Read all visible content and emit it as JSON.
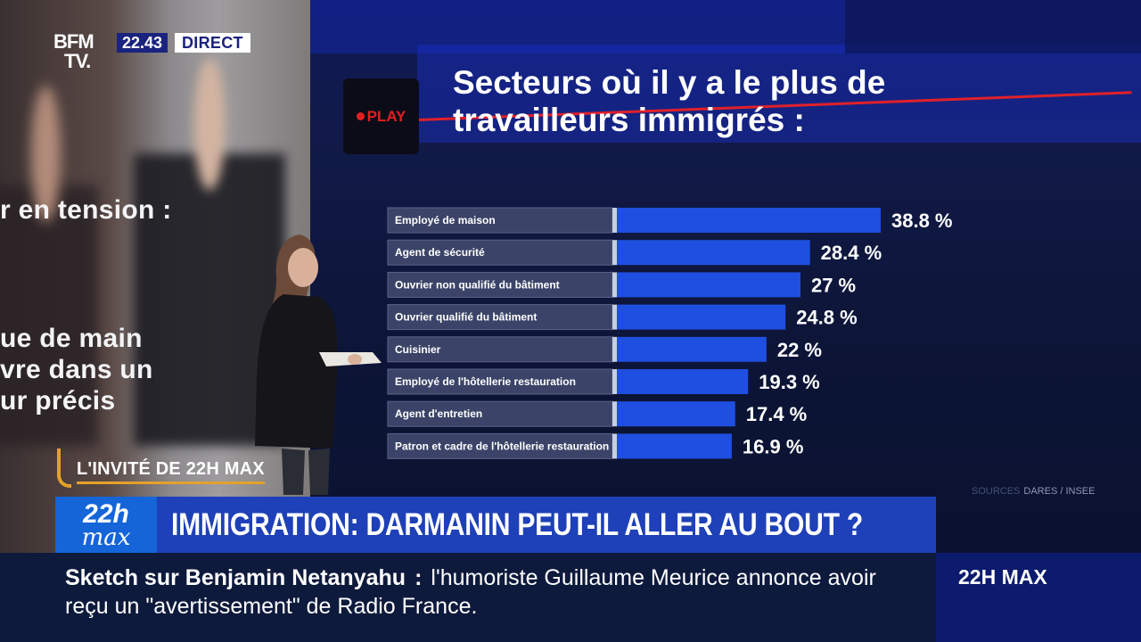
{
  "channel": {
    "logo_line1": "BFM",
    "logo_line2": "TV.",
    "clock": "22.43",
    "live_label": "DIRECT"
  },
  "left_wall": {
    "line1": "r en tension :",
    "line2": "ue de main",
    "line3": "vre dans un",
    "line4": "ur précis"
  },
  "screen": {
    "play_label": "PLAY",
    "title_line1": "Secteurs où il y a le plus de",
    "title_line2": "travailleurs immigrés :",
    "source_prefix": "SOURCES",
    "source": "DARES / INSEE"
  },
  "chart_data": {
    "type": "bar",
    "orientation": "horizontal",
    "title": "Secteurs où il y a le plus de travailleurs immigrés :",
    "categories": [
      "Employé de maison",
      "Agent de sécurité",
      "Ouvrier non qualifié du bâtiment",
      "Ouvrier qualifié du bâtiment",
      "Cuisinier",
      "Employé de l'hôtellerie restauration",
      "Agent d'entretien",
      "Patron et cadre de l'hôtellerie restauration"
    ],
    "values": [
      38.8,
      28.4,
      27,
      24.8,
      22,
      19.3,
      17.4,
      16.9
    ],
    "value_labels": [
      "38.8 %",
      "28.4 %",
      "27 %",
      "24.8 %",
      "22 %",
      "19.3 %",
      "17.4 %",
      "16.9 %"
    ],
    "unit": "%",
    "colors": {
      "bar": "#1f4fe0",
      "label_box": "#3b4468"
    },
    "source": "DARES / INSEE"
  },
  "guest_label": "L'INVITÉ DE 22H MAX",
  "show": {
    "logo_top": "22h",
    "logo_bottom": "max",
    "headline": "IMMIGRATION: DARMANIN PEUT-IL ALLER AU BOUT ?"
  },
  "ticker": {
    "topic": "Sketch sur Benjamin Netanyahu",
    "colon": ":",
    "text": "l'humoriste Guillaume Meurice annonce avoir reçu un \"avertissement\" de Radio France.",
    "program": "22H MAX"
  },
  "colors": {
    "accent_orange": "#e6a02a",
    "banner_blue": "#1e40b8",
    "live_red": "#e02020"
  }
}
